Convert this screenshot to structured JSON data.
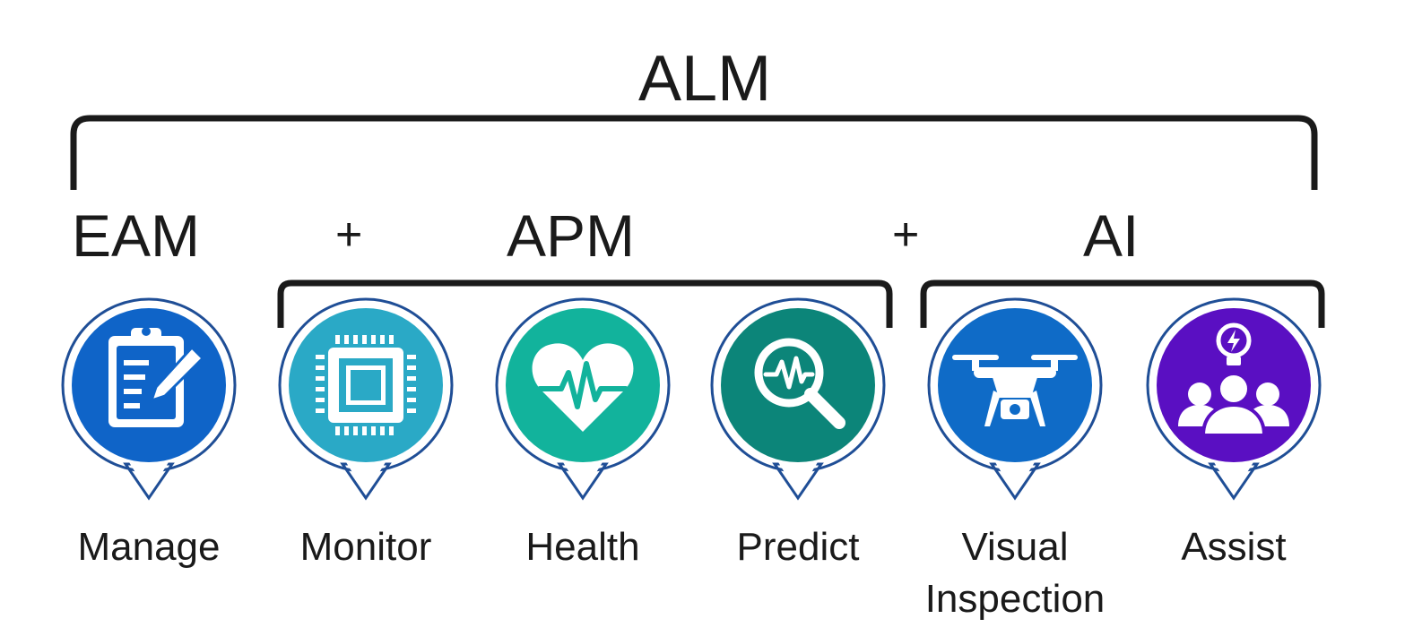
{
  "headings": {
    "alm": "ALM",
    "eam": "EAM",
    "plus_1": "+",
    "apm": "APM",
    "plus_2": "+",
    "ai": "AI"
  },
  "modules": [
    {
      "label": "Manage",
      "color": "#0f64c8",
      "icon": "clipboard-pencil-icon"
    },
    {
      "label": "Monitor",
      "color": "#2aa9c6",
      "icon": "chip-icon"
    },
    {
      "label": "Health",
      "color": "#12b39c",
      "icon": "heart-pulse-icon"
    },
    {
      "label": "Predict",
      "color": "#0c8579",
      "icon": "magnifier-pulse-icon"
    },
    {
      "label": "Visual\nInspection",
      "color": "#0f6bc7",
      "icon": "drone-icon"
    },
    {
      "label": "Assist",
      "color": "#5a0fc2",
      "icon": "team-idea-icon"
    }
  ],
  "colors": {
    "pin_outline": "#1f4e96",
    "bracket": "#1a1a1a"
  }
}
